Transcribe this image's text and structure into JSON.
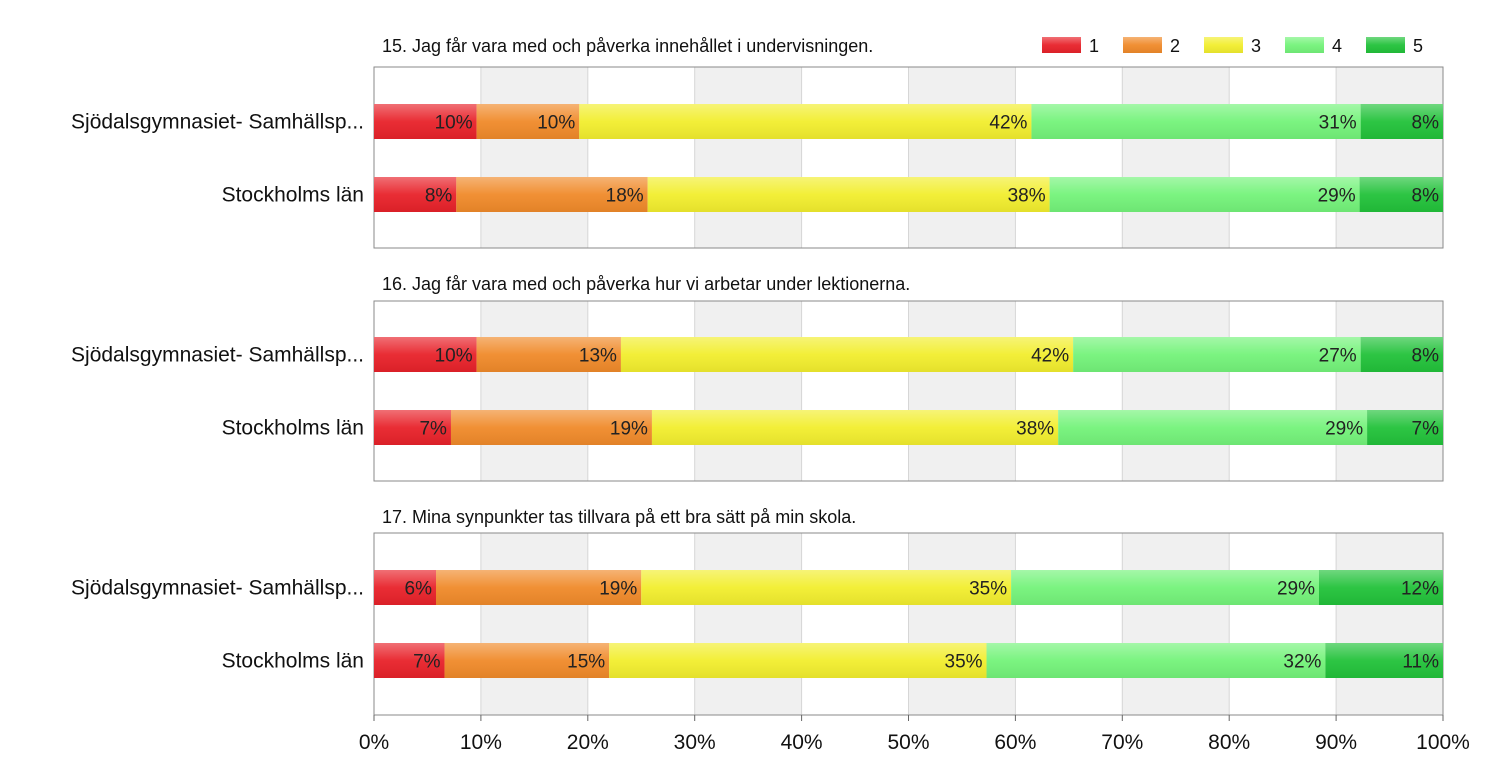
{
  "chart_data": {
    "type": "bar",
    "orientation": "horizontal",
    "stacked": true,
    "xlim": [
      0,
      100
    ],
    "x_ticks": [
      "0%",
      "10%",
      "20%",
      "30%",
      "40%",
      "50%",
      "60%",
      "70%",
      "80%",
      "90%",
      "100%"
    ],
    "grid": true,
    "legend_position": "top-right",
    "legend": [
      {
        "name": "1",
        "color": "#e8222a"
      },
      {
        "name": "2",
        "color": "#f08a2a"
      },
      {
        "name": "3",
        "color": "#f2ee2e"
      },
      {
        "name": "4",
        "color": "#74f37a"
      },
      {
        "name": "5",
        "color": "#22c23a"
      }
    ],
    "panels": [
      {
        "title": "15. Jag får vara med och påverka innehållet i undervisningen.",
        "categories": [
          "Sjödalsgymnasiet- Samhällsp...",
          "Stockholms län"
        ],
        "rows": [
          {
            "values": [
              9.6,
              9.6,
              42.3,
              30.8,
              7.7
            ],
            "labels": [
              "10%",
              "10%",
              "42%",
              "31%",
              "8%"
            ]
          },
          {
            "values": [
              7.7,
              17.9,
              37.6,
              29.0,
              7.8
            ],
            "labels": [
              "8%",
              "18%",
              "38%",
              "29%",
              "8%"
            ]
          }
        ]
      },
      {
        "title": "16. Jag får vara med och påverka hur vi arbetar under lektionerna.",
        "categories": [
          "Sjödalsgymnasiet- Samhällsp...",
          "Stockholms län"
        ],
        "rows": [
          {
            "values": [
              9.6,
              13.5,
              42.3,
              26.9,
              7.7
            ],
            "labels": [
              "10%",
              "13%",
              "42%",
              "27%",
              "8%"
            ]
          },
          {
            "values": [
              7.2,
              18.8,
              38.0,
              28.9,
              7.1
            ],
            "labels": [
              "7%",
              "19%",
              "38%",
              "29%",
              "7%"
            ]
          }
        ]
      },
      {
        "title": "17. Mina synpunkter tas tillvara på ett bra sätt på min skola.",
        "categories": [
          "Sjödalsgymnasiet- Samhällsp...",
          "Stockholms län"
        ],
        "rows": [
          {
            "values": [
              5.8,
              19.2,
              34.6,
              28.8,
              11.6
            ],
            "labels": [
              "6%",
              "19%",
              "35%",
              "29%",
              "12%"
            ]
          },
          {
            "values": [
              6.6,
              15.4,
              35.3,
              31.7,
              11.0
            ],
            "labels": [
              "7%",
              "15%",
              "35%",
              "32%",
              "11%"
            ]
          }
        ]
      }
    ]
  }
}
